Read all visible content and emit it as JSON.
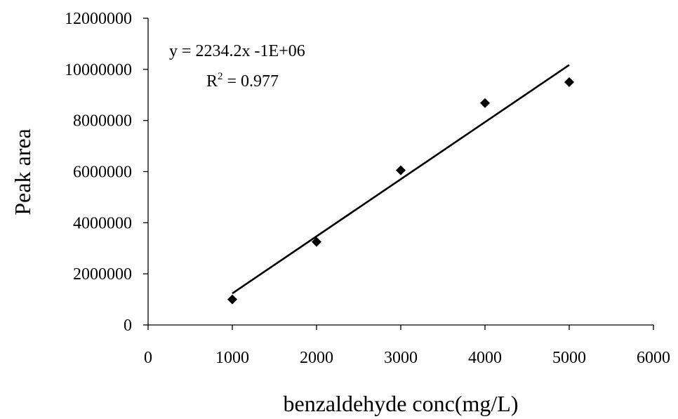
{
  "chart_data": {
    "type": "scatter",
    "title": "",
    "xlabel": "benzaldehyde conc(mg/L)",
    "ylabel": "Peak area",
    "xlim": [
      0,
      6000
    ],
    "ylim": [
      0,
      12000000
    ],
    "x_ticks": [
      0,
      1000,
      2000,
      3000,
      4000,
      5000,
      6000
    ],
    "y_ticks": [
      0,
      2000000,
      4000000,
      6000000,
      8000000,
      10000000,
      12000000
    ],
    "x_tick_labels": [
      "0",
      "1000",
      "2000",
      "3000",
      "4000",
      "5000",
      "6000"
    ],
    "y_tick_labels": [
      "0",
      "2000000",
      "4000000",
      "6000000",
      "8000000",
      "10000000",
      "12000000"
    ],
    "grid": false,
    "legend": "none",
    "marker": "diamond",
    "color": "#000000",
    "series": [
      {
        "x": [
          1000,
          2000,
          3000,
          4000,
          5000
        ],
        "y": [
          1000000,
          3250000,
          6050000,
          8680000,
          9500000
        ]
      }
    ],
    "trendline": {
      "type": "linear",
      "slope": 2234.2,
      "intercept": -1000000,
      "x_range": [
        1000,
        5000
      ],
      "equation_text": "y = 2234.2x -1E+06",
      "r2_prefix": "R",
      "r2_exponent": "2",
      "r2_suffix": " = 0.977"
    }
  }
}
